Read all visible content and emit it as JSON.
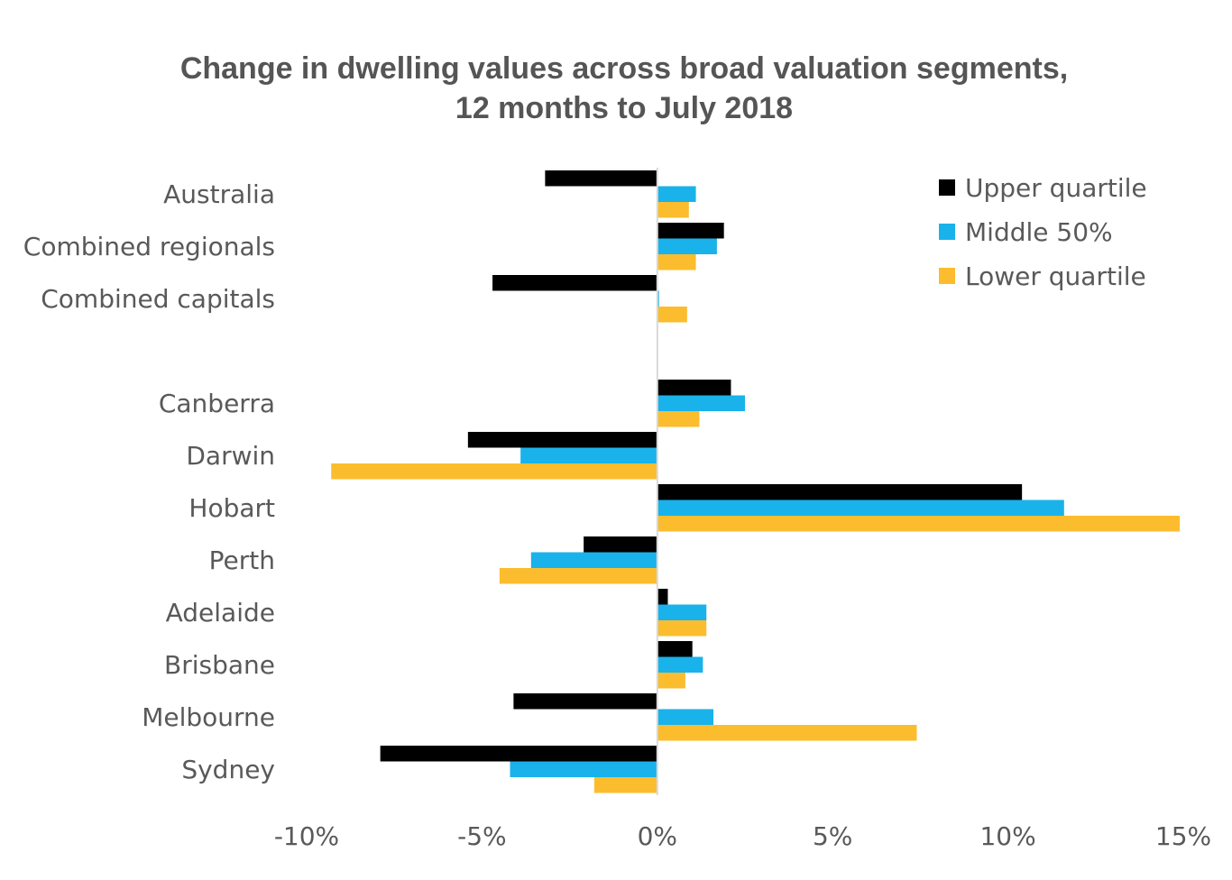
{
  "chart_data": {
    "type": "bar",
    "orientation": "horizontal",
    "title": [
      "Change in dwelling values across broad valuation segments,",
      "12 months to July 2018"
    ],
    "categories": [
      "Australia",
      "Combined regionals",
      "Combined capitals",
      "",
      "Canberra",
      "Darwin",
      "Hobart",
      "Perth",
      "Adelaide",
      "Brisbane",
      "Melbourne",
      "Sydney"
    ],
    "series": [
      {
        "name": "Upper quartile",
        "color": "#000000",
        "values": [
          -3.2,
          1.9,
          -4.7,
          null,
          2.1,
          -5.4,
          10.4,
          -2.1,
          0.3,
          1.0,
          -4.1,
          -7.9
        ]
      },
      {
        "name": "Middle 50%",
        "color": "#1ab2ea",
        "values": [
          1.1,
          1.7,
          0.05,
          null,
          2.5,
          -3.9,
          11.6,
          -3.6,
          1.4,
          1.3,
          1.6,
          -4.2
        ]
      },
      {
        "name": "Lower quartile",
        "color": "#fbbd2e",
        "values": [
          0.9,
          1.1,
          0.85,
          null,
          1.2,
          -9.3,
          14.9,
          -4.5,
          1.4,
          0.8,
          7.4,
          -1.8
        ]
      }
    ],
    "xlim": [
      -10,
      15
    ],
    "xticks": [
      "-10%",
      "-5%",
      "0%",
      "5%",
      "10%",
      "15%"
    ],
    "xtick_values": [
      -10,
      -5,
      0,
      5,
      10,
      15
    ],
    "grid": false,
    "legend_position": "top-right"
  }
}
